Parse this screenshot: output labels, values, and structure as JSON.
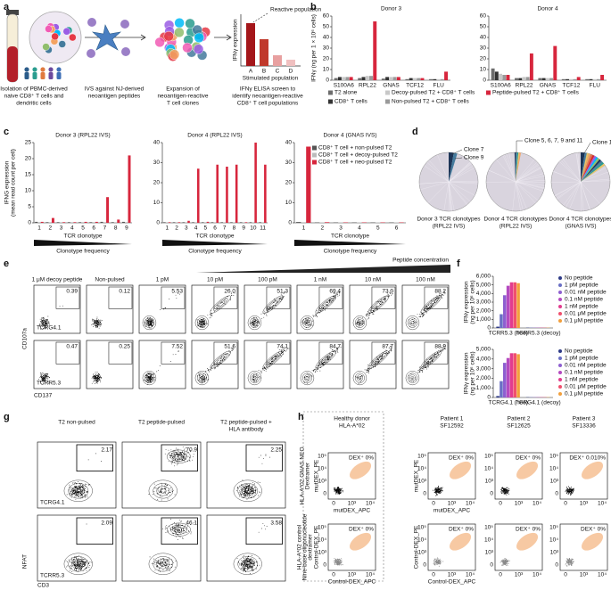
{
  "figure": {
    "panel_labels": [
      "a",
      "b",
      "c",
      "d",
      "e",
      "f",
      "g",
      "h"
    ],
    "a": {
      "steps": [
        [
          "Isolation of PBMC-derived",
          "naive CD8⁺ T cells and",
          "dendritic cells"
        ],
        [
          "IVS against NJ-derived",
          "neoantigen peptides"
        ],
        [
          "Expansion of",
          "neoantigen-reactive",
          "T cell clones"
        ],
        [
          "IFNγ ELISA screen to",
          "identify neoantigen-reactive",
          "CD8⁺ T cell populations"
        ]
      ],
      "inset": {
        "ylabel": "IFNγ expression",
        "xlabel": "Stimulated population",
        "annotation": "Reactive population",
        "categories": [
          "A",
          "B",
          "C",
          "D"
        ]
      }
    },
    "d": {
      "plots": [
        {
          "clones": [
            "Clone 7",
            "Clone 9"
          ],
          "caption": [
            "Donor 3 TCR clonotypes",
            "(RPL22 IVS)"
          ]
        },
        {
          "clones": [
            "Clone 5, 6, 7, 9 and 11"
          ],
          "caption": [
            "Donor 4 TCR clonotypes",
            "(RPL22 IVS)"
          ]
        },
        {
          "clones": [
            "Clone 1"
          ],
          "caption": [
            "Donor 4 TCR clonotypes",
            "(GNAS IVS)"
          ]
        }
      ]
    },
    "e": {
      "header": "Peptide concentration",
      "columns": [
        "1 μM decoy peptide",
        "Non-pulsed",
        "1 pM",
        "10 pM",
        "100 pM",
        "1 nM",
        "10 nM",
        "100 nM"
      ],
      "rows": [
        {
          "label": "TCRG4.1",
          "values": [
            "0.39",
            "0.12",
            "5.53",
            "26.0",
            "51.3",
            "69.4",
            "73.0",
            "88.2"
          ]
        },
        {
          "label": "TCRR5.3",
          "values": [
            "0.47",
            "0.25",
            "7.52",
            "51.6",
            "74.1",
            "84.7",
            "87.7",
            "88.9"
          ]
        }
      ],
      "xlabel": "CD137",
      "ylabel": "CD107a"
    },
    "g": {
      "columns": [
        [
          "T2 non-pulsed"
        ],
        [
          "T2 peptide-pulsed"
        ],
        [
          "T2 peptide-pulsed +",
          "HLA antibody"
        ]
      ],
      "rows": [
        {
          "label": "TCRG4.1",
          "values": [
            "2.17",
            "70.9",
            "2.25"
          ]
        },
        {
          "label": "TCRR5.3",
          "values": [
            "2.09",
            "46.1",
            "3.58"
          ]
        }
      ],
      "xlabel": "CD3",
      "ylabel": "NFAT"
    },
    "h": {
      "columns": [
        [
          "Healthy donor",
          "HLA-A*02"
        ],
        [
          "Patient 1",
          "SF12592"
        ],
        [
          "Patient 2",
          "SF12625"
        ],
        [
          "Patient 3",
          "SF13336"
        ]
      ],
      "rows": [
        {
          "label": [
            "HLA-A*02 GNAS NEO",
            "Dextramer"
          ],
          "xlabel": "mutDEX_APC",
          "ylabel": "mutDEX_PE",
          "values": [
            "DEX⁺ 0%",
            "DEX⁺ 0%",
            "DEX⁺ 0%",
            "DEX⁺ 0.010%"
          ]
        },
        {
          "label": [
            "HLA-A*02 control",
            "Nine-base oligonucleotide",
            "dextramer"
          ],
          "xlabel": "Control-DEX_APC",
          "ylabel": "Control-DEX_PE",
          "values": [
            "DEX⁺ 0%",
            "DEX⁺ 0%",
            "DEX⁺ 0%",
            "DEX⁺ 0%"
          ]
        }
      ],
      "ticks": [
        "0",
        "10³",
        "10⁴",
        "10⁵"
      ]
    }
  },
  "chart_data": [
    {
      "type": "bar",
      "title": "Donor 3",
      "ylabel": "IFNγ (ng per 1 × 10⁶ cells)",
      "categories": [
        "S100A6",
        "RPL22",
        "GNAS",
        "TCF12",
        "FLU"
      ],
      "series": [
        {
          "name": "T2 alone",
          "color": "#6d6d6d",
          "values": [
            2,
            2,
            1.5,
            1,
            1
          ]
        },
        {
          "name": "CD8⁺ T cells",
          "color": "#333333",
          "values": [
            3,
            3,
            3,
            2,
            1
          ]
        },
        {
          "name": "Decoy-pulsed T2 + CD8⁺ T cells",
          "color": "#c8c8c8",
          "values": [
            3,
            4,
            3,
            2,
            1
          ]
        },
        {
          "name": "Non-pulsed T2 + CD8⁺ T cells",
          "color": "#9a9a9a",
          "values": [
            3,
            4,
            3,
            2,
            1
          ]
        },
        {
          "name": "Peptide-pulsed T2 + CD8⁺ T cells",
          "color": "#d7263d",
          "values": [
            3,
            55,
            3,
            2,
            8
          ]
        }
      ],
      "ylim": [
        0,
        60
      ],
      "yticks": [
        0,
        10,
        20,
        30,
        40,
        50,
        60
      ]
    },
    {
      "type": "bar",
      "title": "Donor 4",
      "categories": [
        "S100A6",
        "RPL22",
        "GNAS",
        "TCF12",
        "FLU"
      ],
      "series": [
        {
          "color": "#6d6d6d",
          "values": [
            11,
            2,
            2,
            1,
            1
          ]
        },
        {
          "color": "#333333",
          "values": [
            8,
            2,
            2,
            1,
            1
          ]
        },
        {
          "color": "#c8c8c8",
          "values": [
            6,
            3,
            2,
            1,
            1
          ]
        },
        {
          "color": "#9a9a9a",
          "values": [
            5,
            3,
            2,
            1,
            1
          ]
        },
        {
          "color": "#d7263d",
          "values": [
            5,
            25,
            32,
            3,
            5
          ]
        }
      ],
      "ylim": [
        0,
        60
      ],
      "yticks": [
        0,
        10,
        20,
        30,
        40,
        50,
        60
      ]
    },
    {
      "type": "bar",
      "title": "Donor 3 (RPL22 IVS)",
      "ylabel": [
        "IFNG expression",
        "(mean read count per cell)"
      ],
      "xlabel": "TCR clonotype",
      "gradient_label": "Clonotype frequency",
      "categories": [
        "1",
        "2",
        "3",
        "4",
        "5",
        "6",
        "7",
        "8",
        "9"
      ],
      "series": [
        {
          "color": "#555555",
          "values": [
            0.3,
            0.2,
            0.2,
            0.2,
            0.2,
            0.2,
            0.3,
            0.2,
            0.3
          ]
        },
        {
          "color": "#bbbbbb",
          "values": [
            0.2,
            0.2,
            0.2,
            0.2,
            0.2,
            0.2,
            0.2,
            0.2,
            0.2
          ]
        },
        {
          "color": "#d7263d",
          "values": [
            0.3,
            1.5,
            0.2,
            0.2,
            0.3,
            0.3,
            8,
            1,
            21
          ]
        }
      ],
      "ylim": [
        0,
        25
      ],
      "yticks": [
        0,
        5,
        10,
        15,
        20,
        25
      ]
    },
    {
      "type": "bar",
      "title": "Donor 4 (RPL22 IVS)",
      "xlabel": "TCR clonotype",
      "gradient_label": "Clonotype frequency",
      "categories": [
        "1",
        "2",
        "3",
        "4",
        "5",
        "6",
        "7",
        "8",
        "9",
        "10",
        "11"
      ],
      "series": [
        {
          "color": "#555555",
          "values": [
            0.3,
            0.3,
            0.3,
            0.3,
            0.3,
            0.3,
            0.3,
            0.3,
            0.3,
            0.3,
            0.3
          ]
        },
        {
          "color": "#bbbbbb",
          "values": [
            0.3,
            0.3,
            0.3,
            0.3,
            0.3,
            0.3,
            0.3,
            0.3,
            0.3,
            0.3,
            0.3
          ]
        },
        {
          "color": "#d7263d",
          "values": [
            0.3,
            0.3,
            1,
            27,
            0.5,
            29,
            28,
            29,
            0.3,
            40,
            29
          ]
        }
      ],
      "ylim": [
        0,
        40
      ],
      "yticks": [
        0,
        10,
        20,
        30,
        40
      ]
    },
    {
      "type": "bar",
      "title": "Donor 4 (GNAS IVS)",
      "xlabel": "TCR clonotype",
      "gradient_label": "Clonotype frequency",
      "categories": [
        "1",
        "2",
        "3",
        "4",
        "5",
        "6"
      ],
      "series": [
        {
          "name": "CD8⁺ T cell + non-pulsed T2",
          "color": "#555555",
          "values": [
            0.4,
            0.2,
            0.2,
            0.2,
            0.2,
            0.2
          ]
        },
        {
          "name": "CD8⁺ T cell + decoy-pulsed T2",
          "color": "#bbbbbb",
          "values": [
            0.3,
            0.2,
            0.2,
            0.2,
            0.2,
            0.2
          ]
        },
        {
          "name": "CD8⁺ T cell + neo-pulsed T2",
          "color": "#d7263d",
          "values": [
            38,
            0.3,
            0.2,
            0.2,
            0.2,
            0.2
          ]
        }
      ],
      "ylim": [
        0,
        40
      ],
      "yticks": [
        0,
        10,
        20,
        30,
        40
      ]
    },
    {
      "type": "bar",
      "ylabel": [
        "IFNγ expression",
        "(ng per 10⁶ cells)"
      ],
      "categories": [
        "TCRR5.3 (neo)",
        "TCRR5.3 (decoy)"
      ],
      "series": [
        {
          "name": "No peptide",
          "color": "#2e3a87",
          "values": [
            150,
            30
          ]
        },
        {
          "name": "1 pM peptide",
          "color": "#6a6fc4",
          "values": [
            1600,
            30
          ]
        },
        {
          "name": "0.01 nM peptide",
          "color": "#8e5fd0",
          "values": [
            3800,
            30
          ]
        },
        {
          "name": "0.1 nM peptide",
          "color": "#b44ac0",
          "values": [
            4900,
            30
          ]
        },
        {
          "name": "1 nM peptide",
          "color": "#e23c8e",
          "values": [
            5300,
            30
          ]
        },
        {
          "name": "0.01 μM peptide",
          "color": "#f0506e",
          "values": [
            5300,
            30
          ]
        },
        {
          "name": "0.1 μM peptide",
          "color": "#f2a03d",
          "values": [
            5200,
            30
          ]
        }
      ],
      "ylim": [
        0,
        6000
      ],
      "yticks": [
        0,
        {
          "value": 1000,
          "label": "1,000"
        },
        {
          "value": 2000,
          "label": "2,000"
        },
        {
          "value": 3000,
          "label": "3,000"
        },
        {
          "value": 4000,
          "label": "4,000"
        },
        {
          "value": 5000,
          "label": "5,000"
        },
        {
          "value": 6000,
          "label": "6,000"
        }
      ]
    },
    {
      "type": "bar",
      "ylabel": [
        "IFNγ expression",
        "(ng per 10⁶ cells)"
      ],
      "categories": [
        "TCRG4.1 (neo)",
        "TCRG4.1 (decoy)"
      ],
      "series": [
        {
          "name": "No peptide",
          "color": "#2e3a87",
          "values": [
            150,
            30
          ]
        },
        {
          "name": "1 pM peptide",
          "color": "#6a6fc4",
          "values": [
            1700,
            30
          ]
        },
        {
          "name": "0.01 nM peptide",
          "color": "#8e5fd0",
          "values": [
            3600,
            30
          ]
        },
        {
          "name": "0.1 nM peptide",
          "color": "#b44ac0",
          "values": [
            4100,
            30
          ]
        },
        {
          "name": "1 nM peptide",
          "color": "#e23c8e",
          "values": [
            4600,
            30
          ]
        },
        {
          "name": "0.01 μM peptide",
          "color": "#f0506e",
          "values": [
            4600,
            30
          ]
        },
        {
          "name": "0.1 μM peptide",
          "color": "#f2a03d",
          "values": [
            4500,
            30
          ]
        }
      ],
      "ylim": [
        0,
        5000
      ],
      "yticks": [
        0,
        {
          "value": 1000,
          "label": "1,000"
        },
        {
          "value": 2000,
          "label": "2,000"
        },
        {
          "value": 3000,
          "label": "3,000"
        },
        {
          "value": 4000,
          "label": "4,000"
        },
        {
          "value": 5000,
          "label": "5,000"
        }
      ]
    }
  ]
}
